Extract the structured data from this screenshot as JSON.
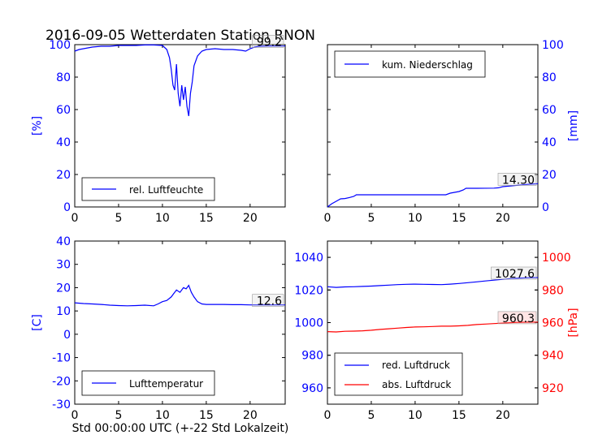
{
  "figure": {
    "title": "2016-09-05 Wetterdaten Station RNON",
    "xlabel": "Std 00:00:00 UTC (+-22 Std Lokalzeit)"
  },
  "colors": {
    "primary": "#0000ff",
    "secondary": "#ff0000",
    "axis": "#000000"
  },
  "chart_data": [
    {
      "type": "line",
      "legend": "rel. Luftfeuchte",
      "legend_position": "lower-left",
      "ylabel": "[%]",
      "ylabel_side": "left",
      "xlim": [
        0,
        24
      ],
      "ylim": [
        0,
        100
      ],
      "xticks": [
        0,
        5,
        10,
        15,
        20
      ],
      "yticks": [
        0,
        20,
        40,
        60,
        80,
        100
      ],
      "annotation": "99.2",
      "series": [
        {
          "color": "#0000ff",
          "axis": "left",
          "x": [
            0,
            0.5,
            1,
            2,
            3,
            4,
            5,
            6,
            7,
            8,
            9,
            10,
            10.5,
            10.8,
            11,
            11.2,
            11.4,
            11.6,
            11.8,
            12,
            12.2,
            12.4,
            12.6,
            12.8,
            13,
            13.2,
            13.4,
            13.6,
            14,
            14.5,
            15,
            16,
            17,
            18,
            19,
            19.5,
            20,
            20.5,
            21,
            22,
            23,
            24
          ],
          "y": [
            96,
            97,
            97.5,
            98.5,
            99,
            99,
            99.5,
            99.5,
            99.5,
            99.8,
            99.8,
            99.5,
            97,
            92,
            85,
            75,
            72,
            88,
            70,
            62,
            75,
            66,
            74,
            62,
            56,
            70,
            77,
            87,
            93,
            96,
            97,
            97.5,
            97,
            97,
            96.5,
            96,
            97.5,
            98.5,
            99,
            99.2,
            99.2,
            99.2
          ]
        }
      ]
    },
    {
      "type": "line",
      "legend": "kum. Niederschlag",
      "legend_position": "upper-left",
      "ylabel": "[mm]",
      "ylabel_side": "right",
      "xlim": [
        0,
        24
      ],
      "ylim": [
        0,
        100
      ],
      "xticks": [
        0,
        5,
        10,
        15,
        20
      ],
      "yticks": [
        0,
        20,
        40,
        60,
        80,
        100
      ],
      "annotation": "14.30",
      "series": [
        {
          "color": "#0000ff",
          "axis": "right",
          "x": [
            0,
            0.5,
            1,
            1.5,
            2,
            2.5,
            3,
            3.3,
            5,
            8,
            10,
            12,
            13.5,
            14,
            15,
            15.5,
            15.8,
            17,
            19,
            19.5,
            20,
            21,
            22,
            23,
            24
          ],
          "y": [
            0,
            2,
            3.5,
            5,
            5.2,
            5.8,
            6.5,
            7.5,
            7.5,
            7.5,
            7.5,
            7.5,
            7.5,
            8.5,
            9.5,
            10.5,
            11.5,
            11.5,
            11.6,
            11.8,
            12.5,
            13,
            13.5,
            14,
            14.3
          ]
        }
      ]
    },
    {
      "type": "line",
      "legend": "Lufttemperatur",
      "legend_position": "lower-left",
      "ylabel": "[C]",
      "ylabel_side": "left",
      "xlim": [
        0,
        24
      ],
      "ylim": [
        -30,
        40
      ],
      "xticks": [
        0,
        5,
        10,
        15,
        20
      ],
      "yticks": [
        -30,
        -20,
        -10,
        0,
        10,
        20,
        30,
        40
      ],
      "annotation": "12.6",
      "series": [
        {
          "color": "#0000ff",
          "axis": "left",
          "x": [
            0,
            1,
            2,
            3,
            4,
            5,
            6,
            7,
            8,
            9,
            9.5,
            10,
            10.5,
            11,
            11.3,
            11.6,
            12,
            12.4,
            12.7,
            13,
            13.3,
            13.6,
            14,
            14.5,
            15,
            16,
            17,
            18,
            19,
            20,
            21,
            22,
            23,
            24
          ],
          "y": [
            13.5,
            13.2,
            13,
            12.8,
            12.5,
            12.3,
            12.2,
            12.3,
            12.5,
            12.2,
            13,
            14,
            14.5,
            16,
            17.5,
            19,
            18,
            20,
            19.5,
            21,
            18,
            16,
            14,
            13,
            12.8,
            12.8,
            12.8,
            12.7,
            12.7,
            12.6,
            12.6,
            12.6,
            12.6,
            12.6
          ]
        }
      ]
    },
    {
      "type": "line",
      "legend_position": "lower-left",
      "ylabel": "[hPa]",
      "ylabel_side": "right",
      "xlim": [
        0,
        24
      ],
      "ylim_left": [
        950,
        1050
      ],
      "ylim_right": [
        910,
        1010
      ],
      "xticks": [
        0,
        5,
        10,
        15,
        20
      ],
      "yticks_left": [
        960,
        980,
        1000,
        1020,
        1040
      ],
      "yticks_right": [
        920,
        940,
        960,
        980,
        1000
      ],
      "annotations": [
        "1027.6",
        "960.3"
      ],
      "series": [
        {
          "name": "red. Luftdruck",
          "color": "#0000ff",
          "axis": "left",
          "x": [
            0,
            1,
            2,
            3,
            4,
            5,
            6,
            7,
            8,
            9,
            10,
            11,
            12,
            13,
            14,
            15,
            16,
            17,
            18,
            19,
            20,
            21,
            22,
            23,
            24
          ],
          "y": [
            1022,
            1021.6,
            1021.9,
            1022,
            1022.2,
            1022.4,
            1022.7,
            1023,
            1023.3,
            1023.5,
            1023.6,
            1023.5,
            1023.4,
            1023.3,
            1023.6,
            1024,
            1024.5,
            1025,
            1025.5,
            1026,
            1026.5,
            1027,
            1027.3,
            1027.5,
            1027.6
          ]
        },
        {
          "name": "abs. Luftdruck",
          "color": "#ff0000",
          "axis": "right",
          "x": [
            0,
            1,
            2,
            3,
            4,
            5,
            6,
            7,
            8,
            9,
            10,
            11,
            12,
            13,
            14,
            15,
            16,
            17,
            18,
            19,
            20,
            21,
            22,
            23,
            24
          ],
          "y": [
            954.5,
            954.3,
            954.7,
            954.8,
            955,
            955.3,
            955.8,
            956.2,
            956.6,
            957,
            957.3,
            957.4,
            957.6,
            957.8,
            957.8,
            958,
            958.3,
            958.8,
            959.1,
            959.4,
            959.7,
            960,
            960.2,
            960.3,
            960.3
          ]
        }
      ]
    }
  ]
}
